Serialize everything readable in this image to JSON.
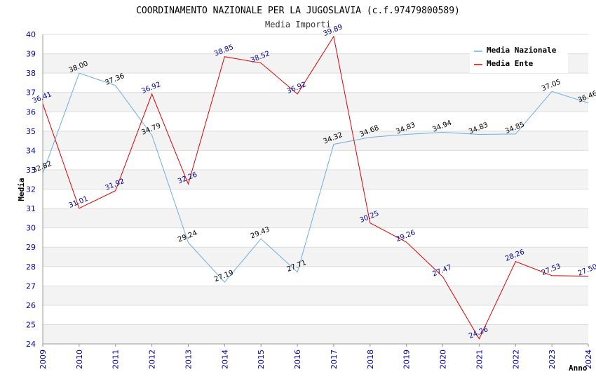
{
  "chart_data": {
    "type": "line",
    "title": "COORDINAMENTO NAZIONALE PER LA JUGOSLAVIA (c.f.97479800589)",
    "subtitle": "Media Importi",
    "xlabel": "Anno",
    "ylabel": "Media",
    "ylim": [
      24,
      40
    ],
    "ytick_step": 1,
    "grid": true,
    "legend_position": "top-right",
    "categories": [
      "2009",
      "2010",
      "2011",
      "2012",
      "2013",
      "2014",
      "2015",
      "2016",
      "2017",
      "2018",
      "2019",
      "2020",
      "2021",
      "2022",
      "2023",
      "2024"
    ],
    "series": [
      {
        "name": "Media Nazionale",
        "color": "#6aaee6",
        "values": [
          32.82,
          38.0,
          37.36,
          34.79,
          29.24,
          27.19,
          29.43,
          27.71,
          34.32,
          34.68,
          34.83,
          34.94,
          34.83,
          34.85,
          37.05,
          36.46
        ],
        "labels": [
          "32.82",
          "38.00",
          "37.36",
          "34.79",
          "29.24",
          "27.19",
          "29.43",
          "27.71",
          "34.32",
          "34.68",
          "34.83",
          "34.94",
          "34.83",
          "34.85",
          "37.05",
          "36.46"
        ]
      },
      {
        "name": "Media Ente",
        "color": "#e00000",
        "values": [
          36.41,
          31.01,
          31.92,
          36.92,
          32.26,
          38.85,
          38.52,
          36.92,
          39.89,
          30.25,
          29.26,
          27.47,
          24.26,
          28.26,
          27.53,
          27.5
        ],
        "labels": [
          "36.41",
          "31.01",
          "31.92",
          "36.92",
          "32.26",
          "38.85",
          "38.52",
          "36.92",
          "39.89",
          "30.25",
          "29.26",
          "27.47",
          "24.26",
          "28.26",
          "27.53",
          "27.50"
        ]
      }
    ]
  }
}
